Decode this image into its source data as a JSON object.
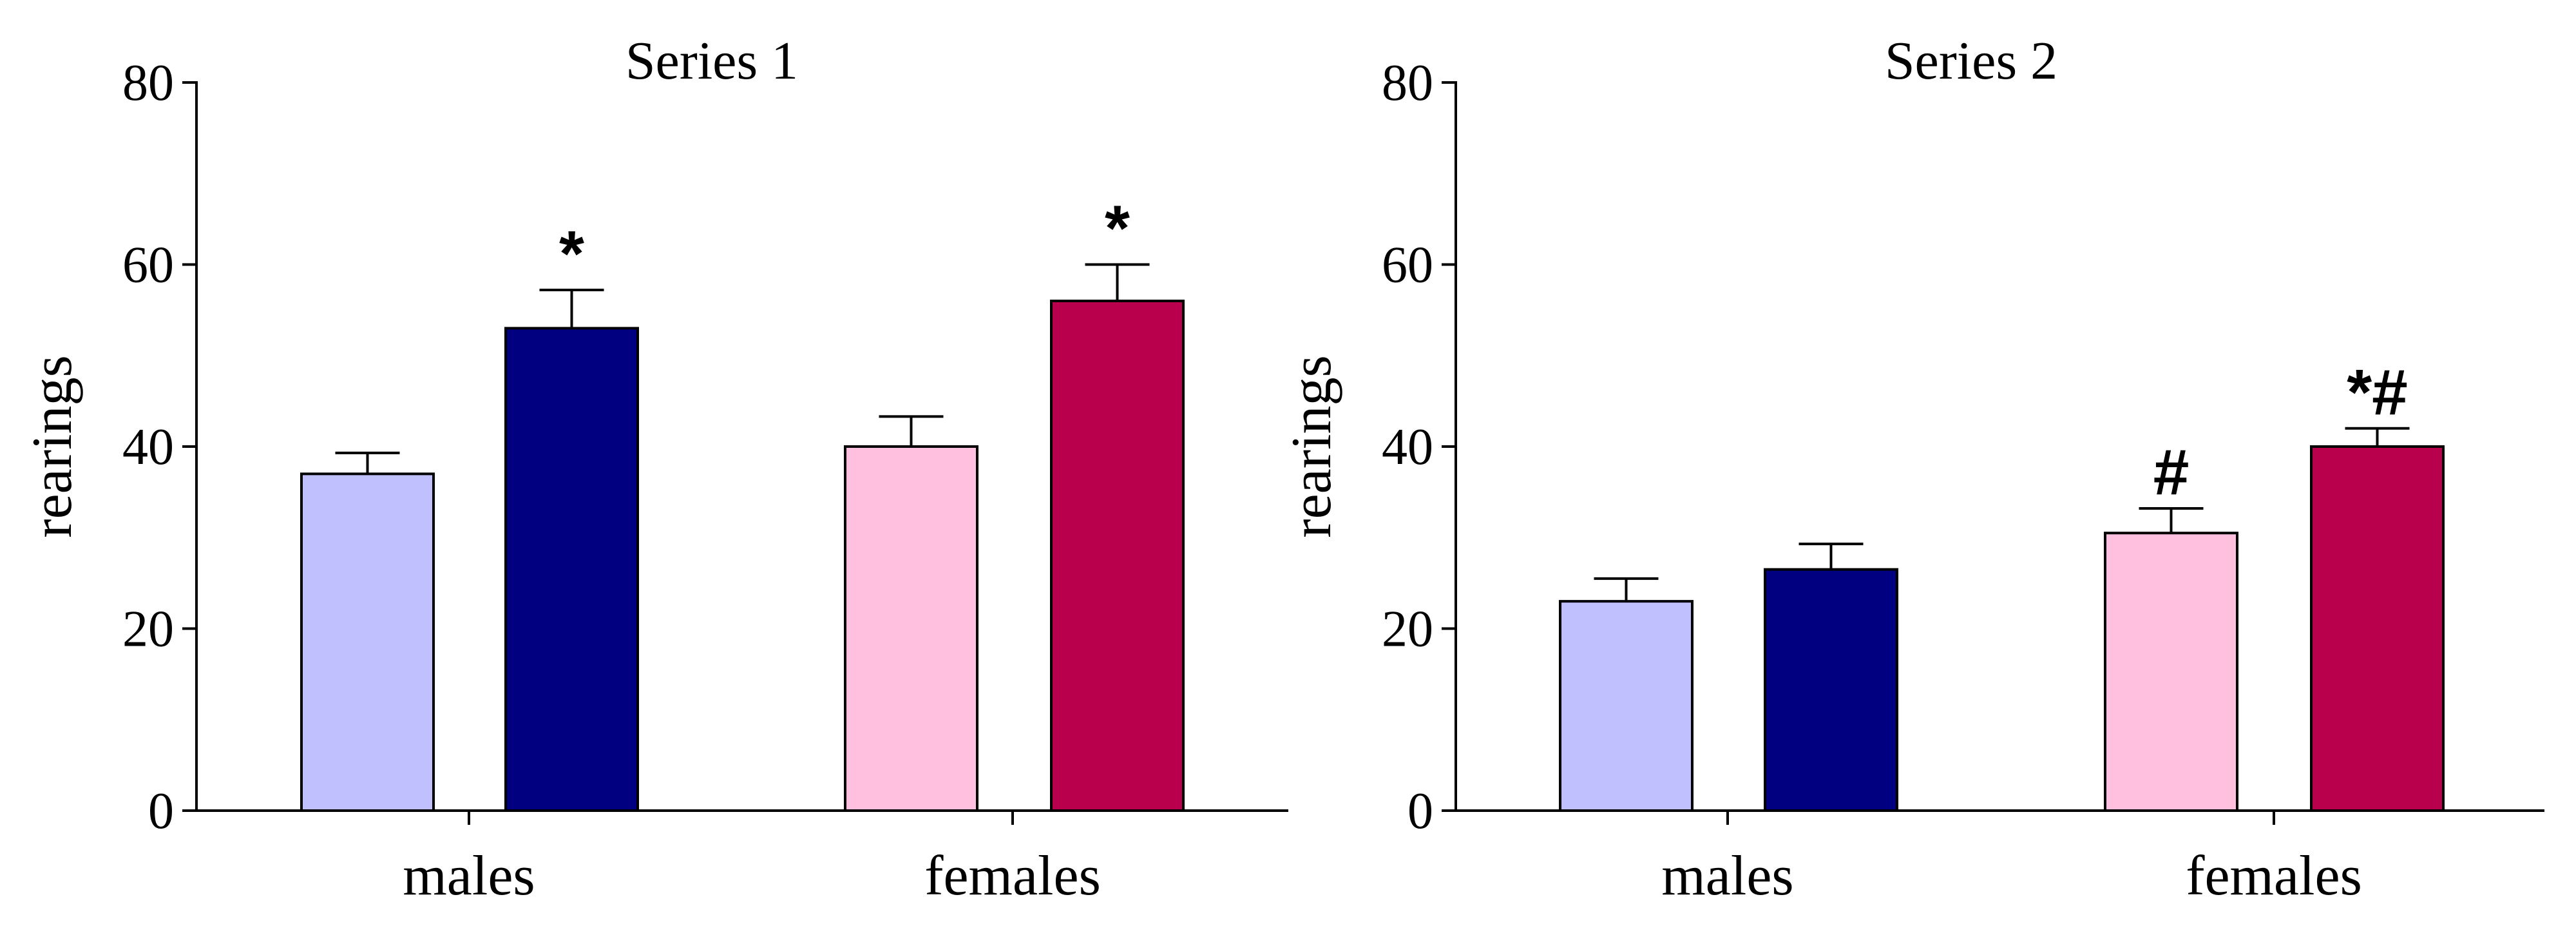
{
  "chart_data": [
    {
      "type": "bar",
      "title": "Series 1",
      "xlabel": "",
      "ylabel": "rearings",
      "ylim": [
        0,
        80
      ],
      "yticks": [
        0,
        20,
        40,
        60,
        80
      ],
      "categories": [
        "males",
        "females"
      ],
      "bars": [
        {
          "category": "males",
          "value": 37,
          "error": 2.3,
          "color": "#c0c0ff",
          "annotation": ""
        },
        {
          "category": "males",
          "value": 53,
          "error": 4.2,
          "color": "#000080",
          "annotation": "*"
        },
        {
          "category": "females",
          "value": 40,
          "error": 3.3,
          "color": "#ffc0e0",
          "annotation": ""
        },
        {
          "category": "females",
          "value": 56,
          "error": 4.0,
          "color": "#b8004c",
          "annotation": "*"
        }
      ]
    },
    {
      "type": "bar",
      "title": "Series 2",
      "xlabel": "",
      "ylabel": "rearings",
      "ylim": [
        0,
        80
      ],
      "yticks": [
        0,
        20,
        40,
        60,
        80
      ],
      "categories": [
        "males",
        "females"
      ],
      "bars": [
        {
          "category": "males",
          "value": 23,
          "error": 2.5,
          "color": "#c0c0ff",
          "annotation": ""
        },
        {
          "category": "males",
          "value": 26.5,
          "error": 2.8,
          "color": "#000080",
          "annotation": ""
        },
        {
          "category": "females",
          "value": 30.5,
          "error": 2.7,
          "color": "#ffc0e0",
          "annotation": "#"
        },
        {
          "category": "females",
          "value": 40,
          "error": 2.0,
          "color": "#b8004c",
          "annotation": "*#"
        }
      ]
    }
  ]
}
